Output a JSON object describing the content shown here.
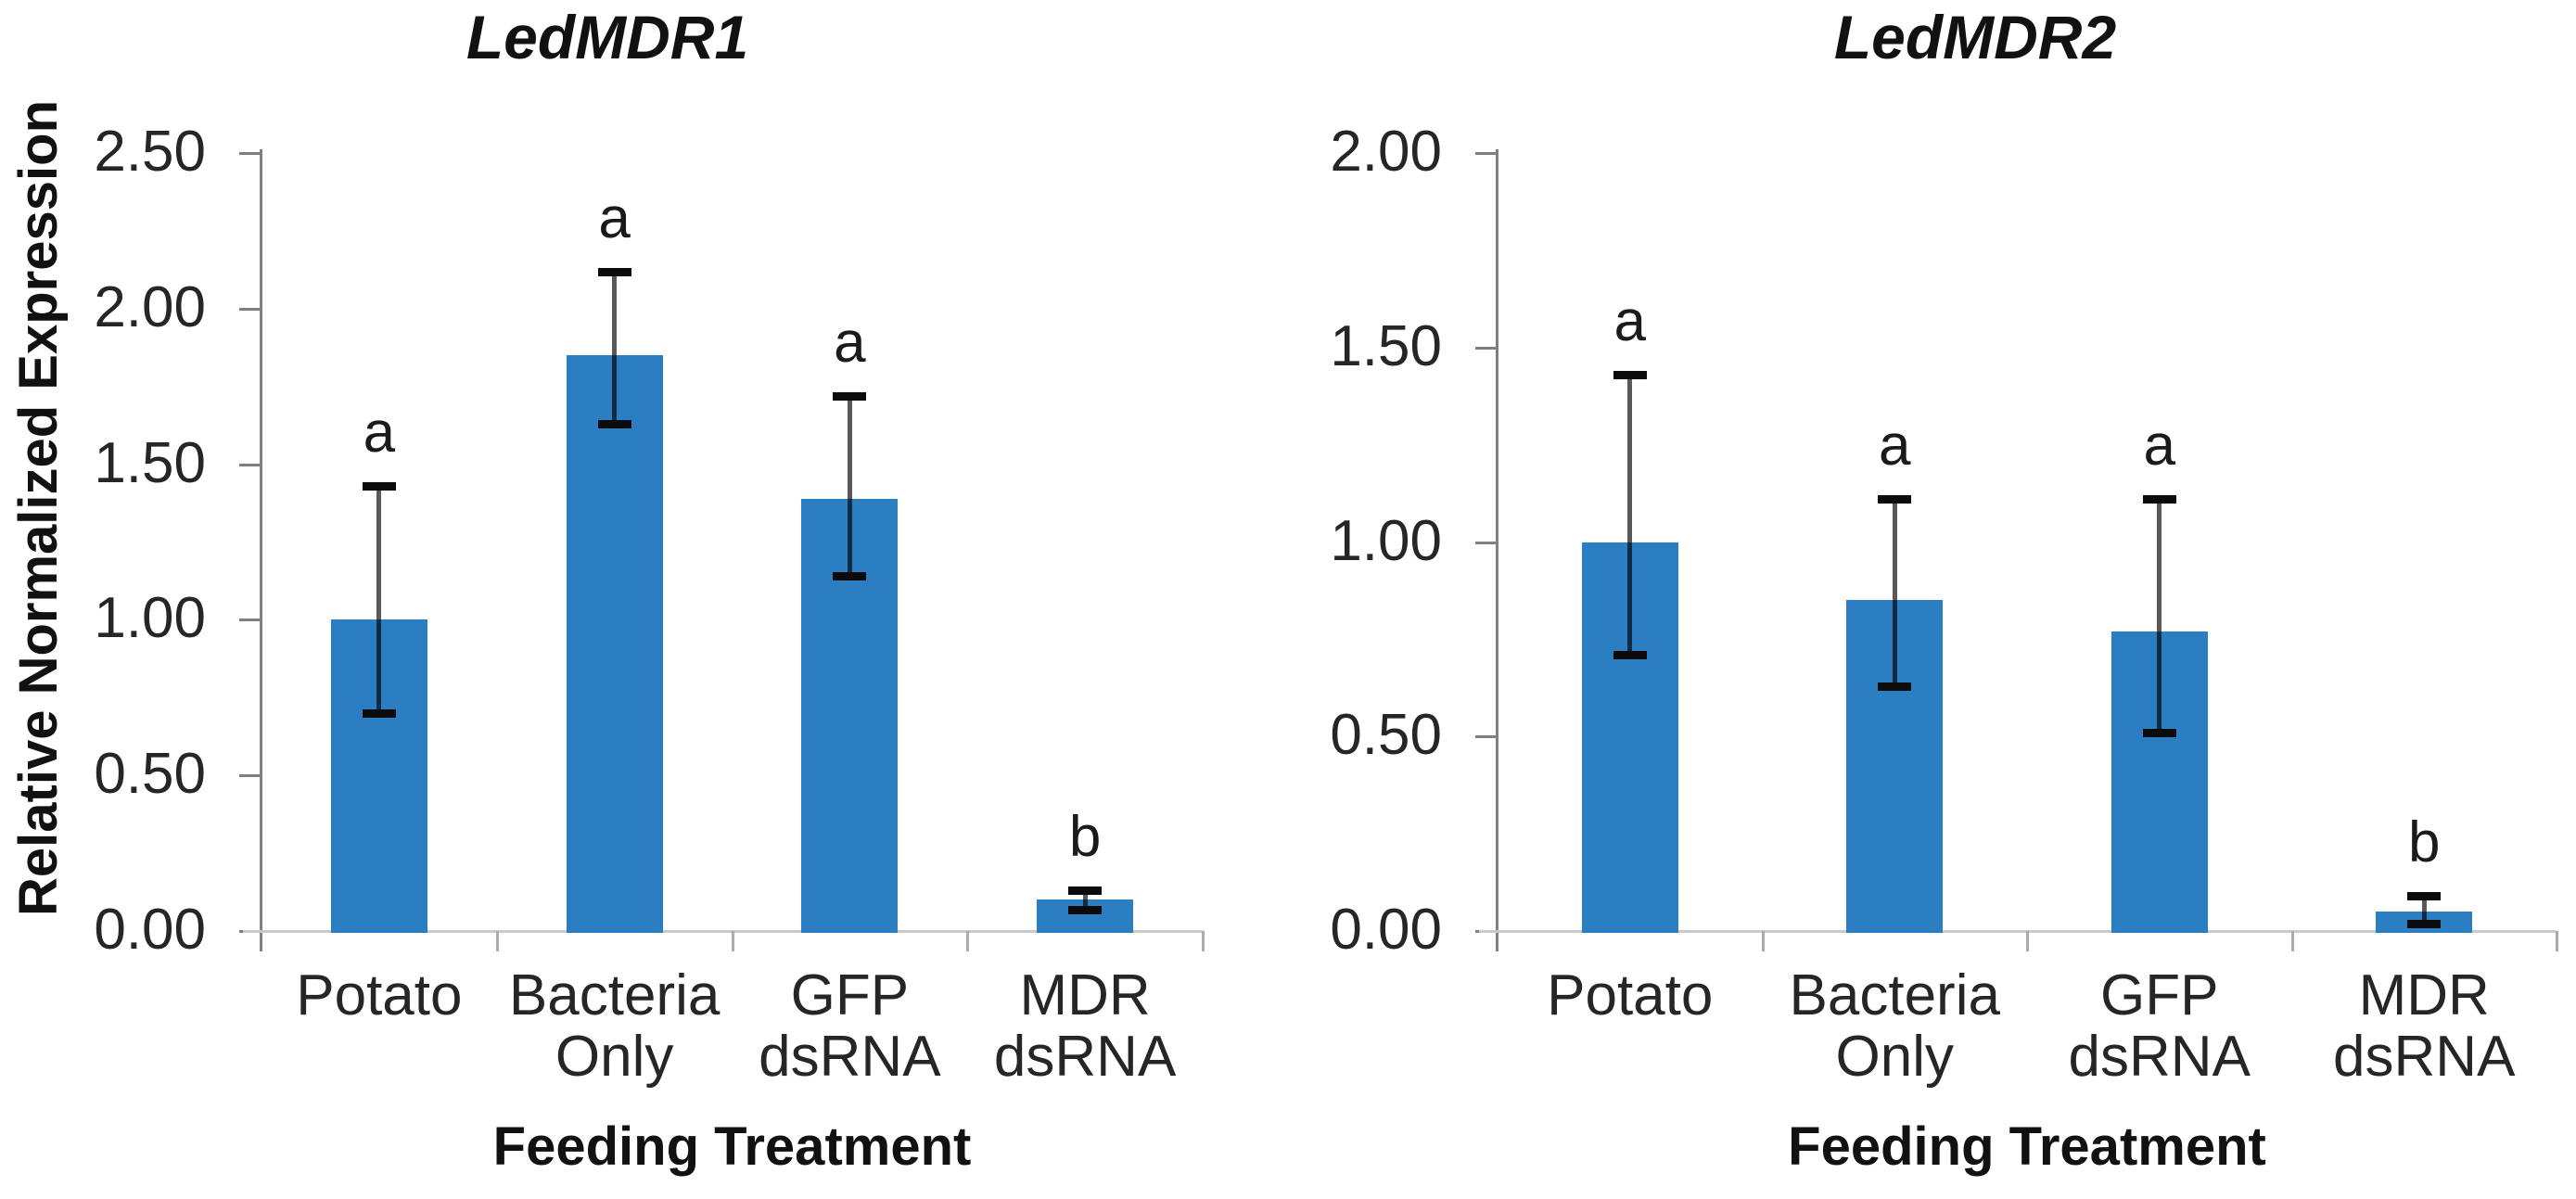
{
  "figure_background": "#ffffff",
  "colors": {
    "bar": "#2b7ec1",
    "y_axis": "#7f7f7f",
    "baseline": "#c9c9c9",
    "error_line": "rgba(0,0,0,0.65)",
    "error_cap": "#0b0b0b",
    "text": "#262626"
  },
  "chart_data": [
    {
      "type": "bar",
      "title": "LedMDR1",
      "xlabel": "Feeding Treatment",
      "ylabel": "Relative Normalized Expression",
      "ylim": [
        0,
        2.5
      ],
      "ytick_labels": [
        "0.00",
        "0.50",
        "1.00",
        "1.50",
        "2.00",
        "2.50"
      ],
      "grid": false,
      "legend": "none",
      "categories": [
        "Potato",
        "Bacteria Only",
        "GFP dsRNA",
        "MDR dsRNA"
      ],
      "category_lines": [
        [
          "Potato"
        ],
        [
          "Bacteria",
          "Only"
        ],
        [
          "GFP",
          "dsRNA"
        ],
        [
          "MDR",
          "dsRNA"
        ]
      ],
      "values": [
        1.0,
        1.85,
        1.39,
        0.1
      ],
      "error_low": [
        0.7,
        1.63,
        1.14,
        0.07
      ],
      "error_high": [
        1.43,
        2.12,
        1.72,
        0.13
      ],
      "sig_letters": [
        "a",
        "a",
        "a",
        "b"
      ]
    },
    {
      "type": "bar",
      "title": "LedMDR2",
      "xlabel": "Feeding Treatment",
      "ylabel": "",
      "ylim": [
        0,
        2.0
      ],
      "ytick_labels": [
        "0.00",
        "0.50",
        "1.00",
        "1.50",
        "2.00"
      ],
      "grid": false,
      "legend": "none",
      "categories": [
        "Potato",
        "Bacteria Only",
        "GFP dsRNA",
        "MDR dsRNA"
      ],
      "category_lines": [
        [
          "Potato"
        ],
        [
          "Bacteria",
          "Only"
        ],
        [
          "GFP",
          "dsRNA"
        ],
        [
          "MDR",
          "dsRNA"
        ]
      ],
      "values": [
        1.0,
        0.85,
        0.77,
        0.05
      ],
      "error_low": [
        0.71,
        0.63,
        0.51,
        0.02
      ],
      "error_high": [
        1.43,
        1.11,
        1.11,
        0.09
      ],
      "sig_letters": [
        "a",
        "a",
        "a",
        "b"
      ]
    }
  ]
}
